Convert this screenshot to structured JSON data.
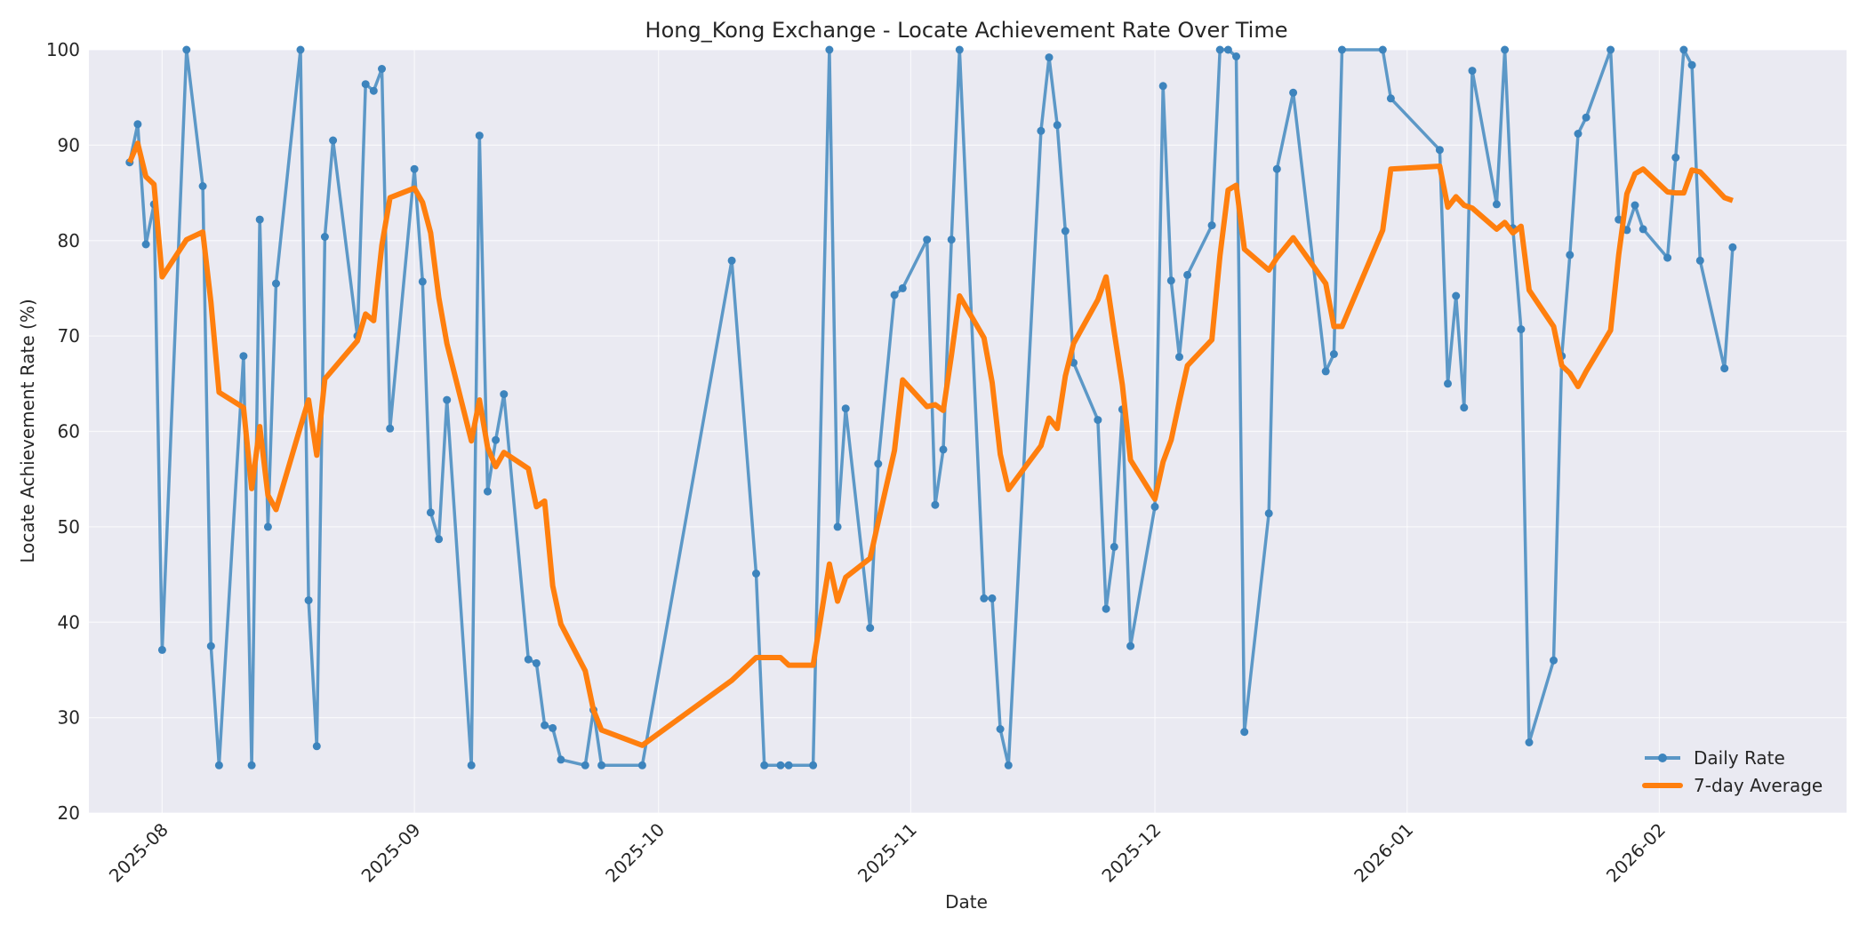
{
  "chart_data": {
    "type": "line",
    "title": "Hong_Kong Exchange - Locate Achievement Rate Over Time",
    "xlabel": "Date",
    "ylabel": "Locate Achievement Rate (%)",
    "ylim": [
      20,
      100
    ],
    "yticks": [
      20,
      30,
      40,
      50,
      60,
      70,
      80,
      90,
      100
    ],
    "xticks": [
      "2025-08",
      "2025-09",
      "2025-10",
      "2025-11",
      "2025-12",
      "2026-01",
      "2026-02"
    ],
    "xtick_day_offsets": [
      0,
      31,
      61,
      92,
      122,
      153,
      184
    ],
    "x_origin": "2025-08-01",
    "x_range_days": [
      -9,
      207
    ],
    "grid": true,
    "background": "#eaeaf2",
    "legend_position": "lower right",
    "series": [
      {
        "name": "Daily Rate",
        "color": "#4c8fc2",
        "marker": "circle",
        "points": [
          [
            -4,
            88.2
          ],
          [
            -3,
            92.2
          ],
          [
            -2,
            79.6
          ],
          [
            -1,
            83.8
          ],
          [
            0,
            37.1
          ],
          [
            3,
            100
          ],
          [
            5,
            85.7
          ],
          [
            6,
            37.5
          ],
          [
            7,
            25
          ],
          [
            10,
            67.9
          ],
          [
            11,
            25
          ],
          [
            12,
            82.2
          ],
          [
            13,
            50
          ],
          [
            14,
            75.5
          ],
          [
            17,
            100
          ],
          [
            18,
            42.3
          ],
          [
            19,
            27
          ],
          [
            20,
            80.4
          ],
          [
            21,
            90.5
          ],
          [
            24,
            70
          ],
          [
            25,
            96.4
          ],
          [
            26,
            95.7
          ],
          [
            27,
            98
          ],
          [
            28,
            60.3
          ],
          [
            31,
            87.5
          ],
          [
            32,
            75.7
          ],
          [
            33,
            51.5
          ],
          [
            34,
            48.7
          ],
          [
            35,
            63.3
          ],
          [
            38,
            25
          ],
          [
            39,
            91
          ],
          [
            40,
            53.7
          ],
          [
            41,
            59.1
          ],
          [
            42,
            63.9
          ],
          [
            45,
            36.1
          ],
          [
            46,
            35.7
          ],
          [
            47,
            29.2
          ],
          [
            48,
            28.9
          ],
          [
            49,
            25.6
          ],
          [
            52,
            25
          ],
          [
            53,
            30.8
          ],
          [
            54,
            25
          ],
          [
            59,
            25
          ],
          [
            70,
            77.9
          ],
          [
            73,
            45.1
          ],
          [
            74,
            25
          ],
          [
            76,
            25
          ],
          [
            77,
            25
          ],
          [
            80,
            25
          ],
          [
            82,
            100
          ],
          [
            83,
            50
          ],
          [
            84,
            62.4
          ],
          [
            87,
            39.4
          ],
          [
            88,
            56.6
          ],
          [
            90,
            74.3
          ],
          [
            91,
            75
          ],
          [
            94,
            80.1
          ],
          [
            95,
            52.3
          ],
          [
            96,
            58.1
          ],
          [
            97,
            80.1
          ],
          [
            98,
            100
          ],
          [
            101,
            42.5
          ],
          [
            102,
            42.5
          ],
          [
            103,
            28.8
          ],
          [
            104,
            25
          ],
          [
            108,
            91.5
          ],
          [
            109,
            99.2
          ],
          [
            110,
            92.1
          ],
          [
            111,
            81
          ],
          [
            112,
            67.2
          ],
          [
            115,
            61.2
          ],
          [
            116,
            41.4
          ],
          [
            117,
            47.9
          ],
          [
            118,
            62.3
          ],
          [
            119,
            37.5
          ],
          [
            122,
            52.1
          ],
          [
            123,
            96.2
          ],
          [
            124,
            75.8
          ],
          [
            125,
            67.8
          ],
          [
            126,
            76.4
          ],
          [
            129,
            81.6
          ],
          [
            130,
            100
          ],
          [
            131,
            100
          ],
          [
            132,
            99.3
          ],
          [
            133,
            28.5
          ],
          [
            136,
            51.4
          ],
          [
            137,
            87.5
          ],
          [
            139,
            95.5
          ],
          [
            143,
            66.3
          ],
          [
            144,
            68.1
          ],
          [
            145,
            100
          ],
          [
            150,
            100
          ],
          [
            151,
            94.9
          ],
          [
            157,
            89.5
          ],
          [
            158,
            65
          ],
          [
            159,
            74.2
          ],
          [
            160,
            62.5
          ],
          [
            161,
            97.8
          ],
          [
            164,
            83.8
          ],
          [
            165,
            100
          ],
          [
            166,
            81.3
          ],
          [
            167,
            70.7
          ],
          [
            168,
            27.4
          ],
          [
            171,
            36
          ],
          [
            172,
            67.9
          ],
          [
            173,
            78.5
          ],
          [
            174,
            91.2
          ],
          [
            175,
            92.9
          ],
          [
            178,
            100
          ],
          [
            179,
            82.2
          ],
          [
            180,
            81.1
          ],
          [
            181,
            83.7
          ],
          [
            182,
            81.2
          ],
          [
            185,
            78.2
          ],
          [
            186,
            88.7
          ],
          [
            187,
            100
          ],
          [
            188,
            98.4
          ],
          [
            189,
            77.9
          ],
          [
            192,
            66.6
          ],
          [
            193,
            79.3
          ]
        ]
      },
      {
        "name": "7-day Average",
        "color": "#ff7f0e",
        "marker": "none",
        "points": [
          [
            -4,
            88.2
          ],
          [
            -3,
            90.2
          ],
          [
            -2,
            86.7
          ],
          [
            -1,
            85.9
          ],
          [
            0,
            76.2
          ],
          [
            3,
            80.1
          ],
          [
            5,
            80.9
          ],
          [
            6,
            73.5
          ],
          [
            7,
            64.1
          ],
          [
            10,
            62.5
          ],
          [
            11,
            54
          ],
          [
            12,
            60.5
          ],
          [
            13,
            53.3
          ],
          [
            14,
            51.8
          ],
          [
            17,
            60.5
          ],
          [
            18,
            63.3
          ],
          [
            19,
            57.5
          ],
          [
            20,
            65.5
          ],
          [
            21,
            66.5
          ],
          [
            24,
            69.5
          ],
          [
            25,
            72.3
          ],
          [
            26,
            71.6
          ],
          [
            27,
            79.5
          ],
          [
            28,
            84.5
          ],
          [
            31,
            85.5
          ],
          [
            32,
            84
          ],
          [
            33,
            80.8
          ],
          [
            34,
            74
          ],
          [
            35,
            69.2
          ],
          [
            38,
            59
          ],
          [
            39,
            63.3
          ],
          [
            40,
            58.3
          ],
          [
            41,
            56.3
          ],
          [
            42,
            57.8
          ],
          [
            45,
            56.1
          ],
          [
            46,
            52.1
          ],
          [
            47,
            52.7
          ],
          [
            48,
            43.8
          ],
          [
            49,
            39.8
          ],
          [
            52,
            34.9
          ],
          [
            53,
            30.8
          ],
          [
            54,
            28.7
          ],
          [
            59,
            27.1
          ],
          [
            70,
            33.9
          ],
          [
            73,
            36.3
          ],
          [
            74,
            36.3
          ],
          [
            76,
            36.3
          ],
          [
            77,
            35.5
          ],
          [
            80,
            35.5
          ],
          [
            82,
            46.1
          ],
          [
            83,
            42.2
          ],
          [
            84,
            44.7
          ],
          [
            87,
            46.7
          ],
          [
            88,
            50.5
          ],
          [
            90,
            58
          ],
          [
            91,
            65.4
          ],
          [
            94,
            62.6
          ],
          [
            95,
            62.8
          ],
          [
            96,
            62.2
          ],
          [
            97,
            68
          ],
          [
            98,
            74.2
          ],
          [
            101,
            69.8
          ],
          [
            102,
            65.1
          ],
          [
            103,
            57.6
          ],
          [
            104,
            53.9
          ],
          [
            108,
            58.5
          ],
          [
            109,
            61.4
          ],
          [
            110,
            60.3
          ],
          [
            111,
            65.8
          ],
          [
            112,
            69.2
          ],
          [
            115,
            73.8
          ],
          [
            116,
            76.2
          ],
          [
            117,
            70.4
          ],
          [
            118,
            64.9
          ],
          [
            119,
            57
          ],
          [
            122,
            52.9
          ],
          [
            123,
            56.8
          ],
          [
            124,
            59.1
          ],
          [
            125,
            63.1
          ],
          [
            126,
            66.9
          ],
          [
            129,
            69.6
          ],
          [
            130,
            78.4
          ],
          [
            131,
            85.3
          ],
          [
            132,
            85.8
          ],
          [
            133,
            79.1
          ],
          [
            136,
            76.9
          ],
          [
            137,
            78.2
          ],
          [
            139,
            80.3
          ],
          [
            143,
            75.5
          ],
          [
            144,
            71
          ],
          [
            145,
            71
          ],
          [
            150,
            81.1
          ],
          [
            151,
            87.5
          ],
          [
            157,
            87.8
          ],
          [
            158,
            83.5
          ],
          [
            159,
            84.6
          ],
          [
            160,
            83.7
          ],
          [
            161,
            83.4
          ],
          [
            164,
            81.2
          ],
          [
            165,
            81.9
          ],
          [
            166,
            80.8
          ],
          [
            167,
            81.5
          ],
          [
            168,
            74.8
          ],
          [
            171,
            71
          ],
          [
            172,
            66.9
          ],
          [
            173,
            66.1
          ],
          [
            174,
            64.7
          ],
          [
            175,
            66.3
          ],
          [
            178,
            70.6
          ],
          [
            179,
            78.5
          ],
          [
            180,
            84.9
          ],
          [
            181,
            87
          ],
          [
            182,
            87.5
          ],
          [
            185,
            85.1
          ],
          [
            186,
            85
          ],
          [
            187,
            85
          ],
          [
            188,
            87.4
          ],
          [
            189,
            87.2
          ],
          [
            192,
            84.5
          ],
          [
            193,
            84.2
          ]
        ]
      }
    ]
  }
}
